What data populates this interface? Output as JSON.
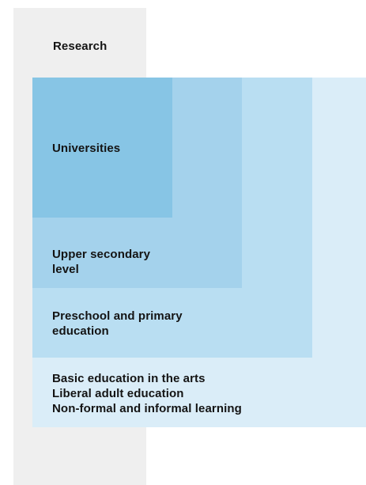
{
  "colors": {
    "research_column": "#efefef",
    "basic_education_box": "#daedf8",
    "preschool_box": "#b9def2",
    "upper_secondary_box": "#a4d2ec",
    "universities_box": "#87c5e5",
    "text": "#141414"
  },
  "labels": {
    "research": "Research",
    "universities": "Universities",
    "upper_secondary": "Upper secondary\nlevel",
    "preschool": "Preschool and primary\neducation",
    "basic": "Basic education in the arts\nLiberal adult education\nNon-formal and informal learning"
  }
}
